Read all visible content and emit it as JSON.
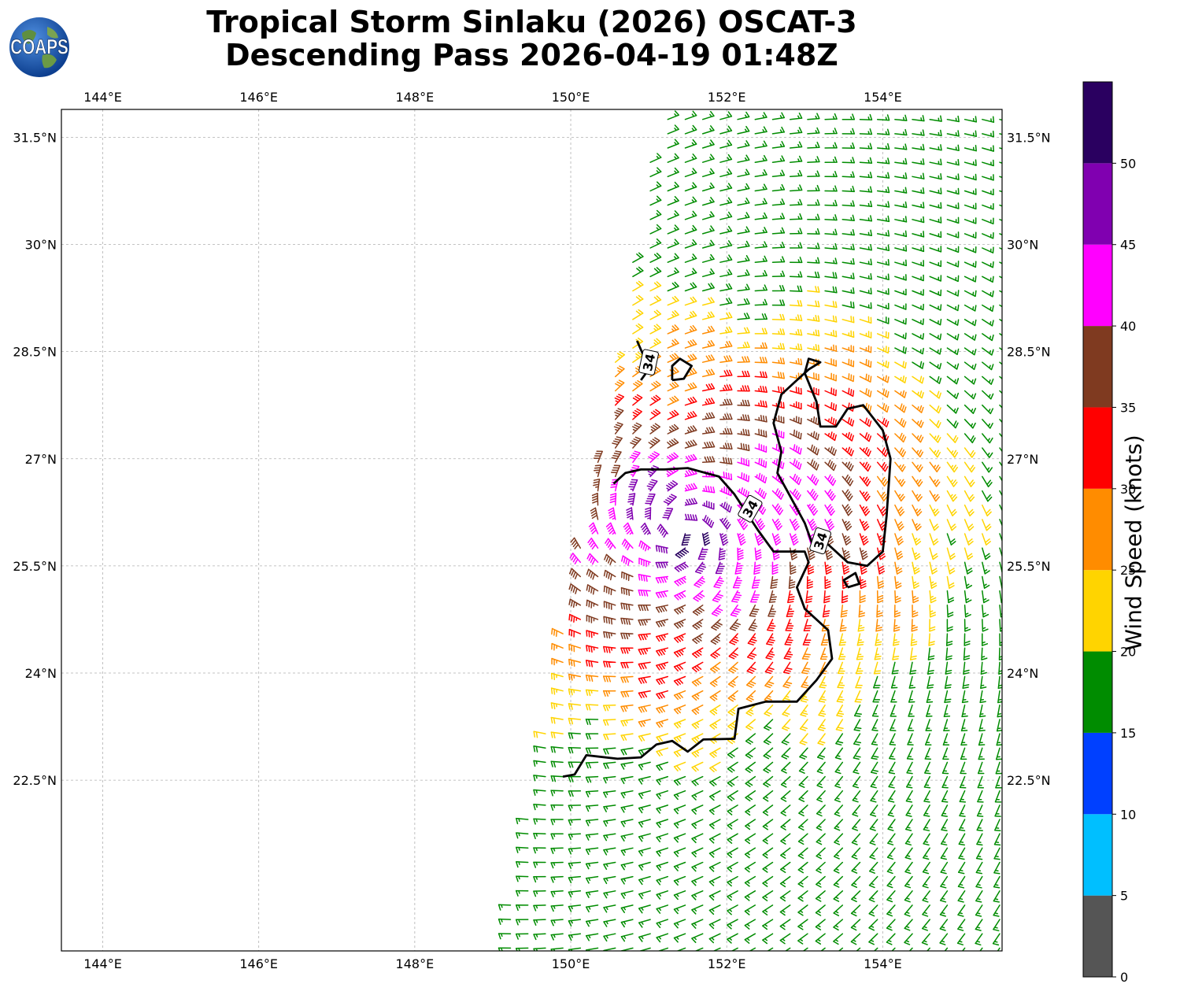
{
  "header": {
    "title_line1": "Tropical Storm Sinlaku (2026) OSCAT-3",
    "title_line2": "Descending Pass 2026-04-19 01:48Z"
  },
  "logo": {
    "text": "COAPS",
    "icon": "globe-logo-icon"
  },
  "map": {
    "lon_range": [
      143.47,
      155.53
    ],
    "lat_range": [
      20.11,
      31.89
    ],
    "lon_ticks": [
      "144°E",
      "146°E",
      "148°E",
      "150°E",
      "152°E",
      "154°E"
    ],
    "lon_tick_values": [
      144,
      146,
      148,
      150,
      152,
      154
    ],
    "lat_ticks": [
      "22.5°N",
      "24°N",
      "25.5°N",
      "27°N",
      "28.5°N",
      "30°N",
      "31.5°N"
    ],
    "lat_tick_values": [
      22.5,
      24,
      25.5,
      27,
      28.5,
      30,
      31.5
    ],
    "grid": true,
    "contour_label": "34",
    "contour_value_kt": 34,
    "swath": {
      "west_edge": [
        [
          149.1,
          20.1
        ],
        [
          150.3,
          26.8
        ],
        [
          151.1,
          31.8
        ]
      ],
      "east_edge": [
        [
          155.53,
          20.1
        ],
        [
          155.53,
          31.9
        ]
      ]
    },
    "storm_center": [
      151.4,
      26.0
    ]
  },
  "colorbar": {
    "label": "Wind Speed (knots)",
    "ticks": [
      "0",
      "5",
      "10",
      "15",
      "20",
      "25",
      "30",
      "35",
      "40",
      "45",
      "50"
    ],
    "bins": [
      {
        "from": 0,
        "to": 5,
        "color": "#555555"
      },
      {
        "from": 5,
        "to": 10,
        "color": "#00bfff"
      },
      {
        "from": 10,
        "to": 15,
        "color": "#0040ff"
      },
      {
        "from": 15,
        "to": 20,
        "color": "#008c00"
      },
      {
        "from": 20,
        "to": 25,
        "color": "#ffd400"
      },
      {
        "from": 25,
        "to": 30,
        "color": "#ff8c00"
      },
      {
        "from": 30,
        "to": 35,
        "color": "#ff0000"
      },
      {
        "from": 35,
        "to": 40,
        "color": "#7f3a20"
      },
      {
        "from": 40,
        "to": 45,
        "color": "#ff00ff"
      },
      {
        "from": 45,
        "to": 50,
        "color": "#8000b0"
      },
      {
        "from": 50,
        "to": 55,
        "color": "#2a0060"
      }
    ]
  }
}
